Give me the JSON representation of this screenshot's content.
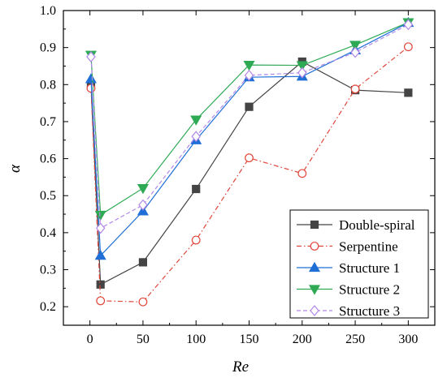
{
  "chart_data": {
    "type": "line",
    "xlabel": "Re",
    "ylabel": "α",
    "xlim": [
      -25,
      325
    ],
    "ylim": [
      0.15,
      1.0
    ],
    "xticks": [
      0,
      50,
      100,
      150,
      200,
      250,
      300
    ],
    "xtick_labels": [
      "0",
      "50",
      "100",
      "150",
      "200",
      "250",
      "300"
    ],
    "yticks": [
      0.2,
      0.3,
      0.4,
      0.5,
      0.6,
      0.7,
      0.8,
      0.9,
      1.0
    ],
    "ytick_labels": [
      "0.2",
      "0.3",
      "0.4",
      "0.5",
      "0.6",
      "0.7",
      "0.8",
      "0.9",
      "1.0"
    ],
    "grid": false,
    "legend_position": "bottom-right",
    "x": [
      1,
      10,
      50,
      100,
      150,
      200,
      250,
      300
    ],
    "series": [
      {
        "name": "Double-spiral",
        "color": "#444444",
        "marker": "square",
        "filled": true,
        "dash": "solid",
        "values": [
          0.8,
          0.26,
          0.32,
          0.518,
          0.74,
          0.862,
          0.785,
          0.778
        ]
      },
      {
        "name": "Serpentine",
        "color": "#e0453a",
        "marker": "circle",
        "filled": false,
        "dash": "dashdot",
        "values": [
          0.79,
          0.216,
          0.213,
          0.38,
          0.602,
          0.56,
          0.788,
          0.902
        ]
      },
      {
        "name": "Structure 1",
        "color": "#1f6fd6",
        "marker": "triangle-up",
        "filled": true,
        "dash": "solid",
        "values": [
          0.815,
          0.338,
          0.458,
          0.65,
          0.82,
          0.822,
          0.893,
          0.967
        ]
      },
      {
        "name": "Structure 2",
        "color": "#2eaa55",
        "marker": "triangle-down",
        "filled": true,
        "dash": "solid",
        "values": [
          0.88,
          0.448,
          0.52,
          0.705,
          0.853,
          0.852,
          0.907,
          0.968
        ]
      },
      {
        "name": "Structure 3",
        "color": "#b088e8",
        "marker": "diamond",
        "filled": false,
        "dash": "dashed",
        "values": [
          0.875,
          0.412,
          0.475,
          0.66,
          0.825,
          0.832,
          0.887,
          0.962
        ]
      }
    ]
  }
}
